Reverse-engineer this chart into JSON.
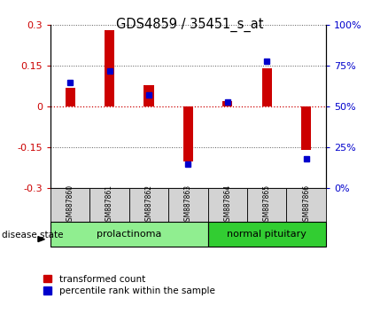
{
  "title": "GDS4859 / 35451_s_at",
  "samples": [
    "GSM887860",
    "GSM887861",
    "GSM887862",
    "GSM887863",
    "GSM887864",
    "GSM887865",
    "GSM887866"
  ],
  "transformed_count": [
    0.07,
    0.28,
    0.08,
    -0.2,
    0.02,
    0.14,
    -0.16
  ],
  "percentile_rank": [
    65,
    72,
    57,
    15,
    53,
    78,
    18
  ],
  "groups": [
    {
      "label": "prolactinoma",
      "indices": [
        0,
        1,
        2,
        3
      ],
      "color": "#90ee90"
    },
    {
      "label": "normal pituitary",
      "indices": [
        4,
        5,
        6
      ],
      "color": "#32cd32"
    }
  ],
  "disease_state_label": "disease state",
  "left_ylim": [
    -0.3,
    0.3
  ],
  "right_ylim": [
    0,
    100
  ],
  "left_yticks": [
    -0.3,
    -0.15,
    0,
    0.15,
    0.3
  ],
  "right_yticks": [
    0,
    25,
    50,
    75,
    100
  ],
  "left_yticklabels": [
    "-0.3",
    "-0.15",
    "0",
    "0.15",
    "0.3"
  ],
  "right_yticklabels": [
    "0%",
    "25%",
    "50%",
    "75%",
    "100%"
  ],
  "bar_color_red": "#cc0000",
  "bar_color_blue": "#0000cc",
  "legend_red": "transformed count",
  "legend_blue": "percentile rank within the sample",
  "hline_color_zero": "#cc0000",
  "dotted_line_color": "#555555",
  "bg_plot": "#ffffff",
  "bg_label": "#d3d3d3",
  "bar_width": 0.25,
  "blue_marker_size": 5.0
}
